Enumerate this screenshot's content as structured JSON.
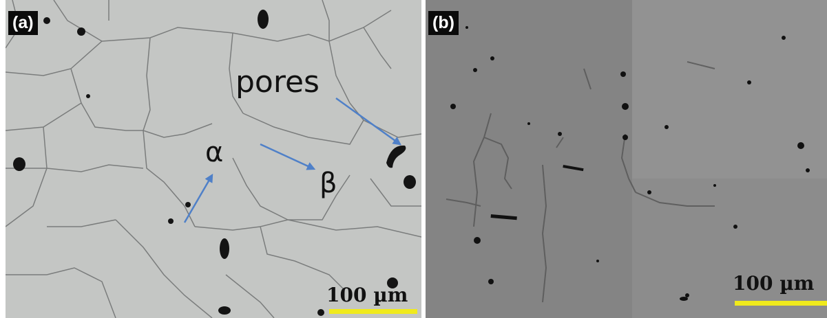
{
  "figure": {
    "panel_a": {
      "tag": "(a)",
      "annotations": {
        "pores": "pores",
        "alpha": "α",
        "beta": "β"
      },
      "scale_bar": "100 µm"
    },
    "panel_b": {
      "tag": "(b)",
      "scale_bar": "100 µm"
    },
    "colors": {
      "arrow": "#4f80c8",
      "scale_bar": "#f0ea1c",
      "tag_background": "#0b0b0b"
    }
  }
}
